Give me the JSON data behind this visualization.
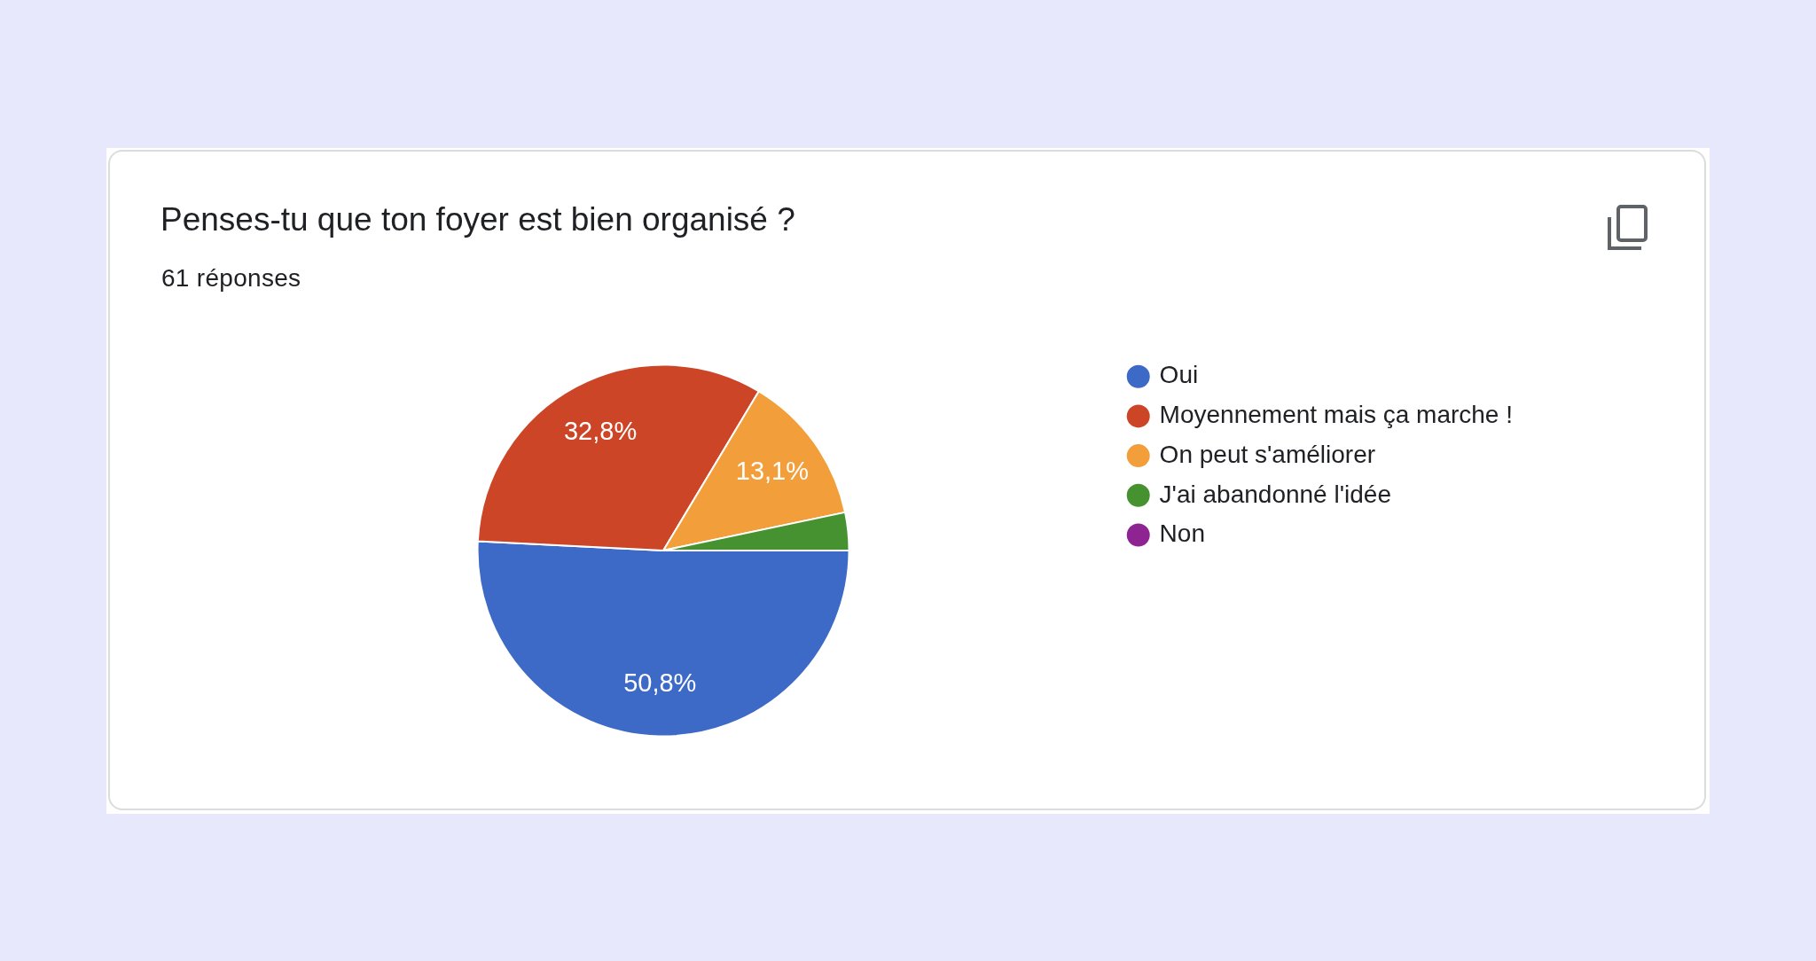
{
  "chart_data": {
    "type": "pie",
    "title": "Penses-tu que ton foyer est bien organisé ?",
    "subtitle": "61 réponses",
    "categories": [
      "Oui",
      "Moyennement mais ça marche !",
      "On peut s'améliorer",
      "J'ai abandonné l'idée",
      "Non"
    ],
    "values": [
      50.8,
      32.8,
      13.1,
      3.3,
      0
    ],
    "colors": [
      "#3d69c7",
      "#cc4527",
      "#f29e3a",
      "#469230",
      "#8e2491"
    ],
    "value_labels": [
      "50,8%",
      "32,8%",
      "13,1%",
      null,
      null
    ],
    "legend": "top right"
  }
}
